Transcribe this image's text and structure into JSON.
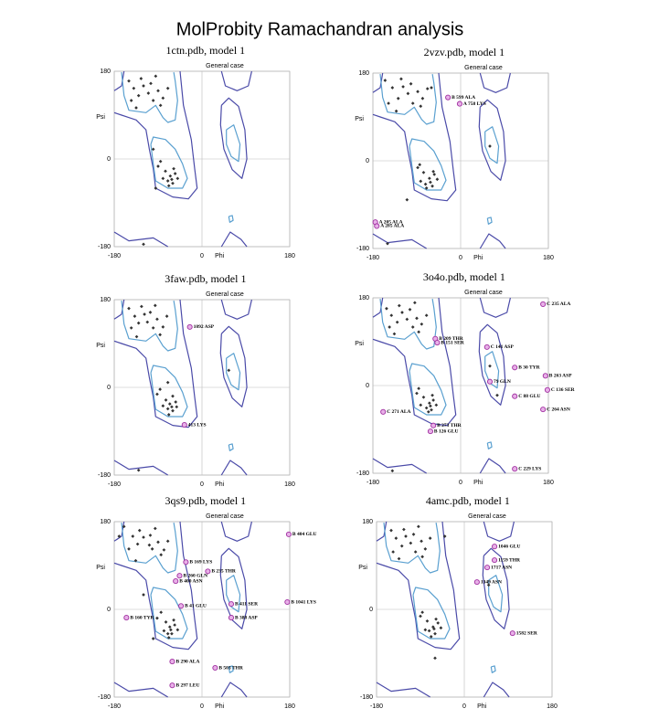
{
  "title": "MolProbity Ramachandran analysis",
  "chart_data": [
    {
      "type": "scatter",
      "title": "1ctn.pdb, model 1",
      "subtitle": "General case",
      "x_label": "Phi",
      "y_label": "Psi",
      "xlim": [
        -180,
        180
      ],
      "ylim": [
        -180,
        180
      ],
      "xticks": [
        -180,
        0,
        180
      ],
      "yticks": [
        -180,
        0,
        180
      ],
      "grid": true,
      "series": [
        {
          "color": "#333333",
          "x": [
            -150,
            -140,
            -130,
            -120,
            -110,
            -100,
            -90,
            -80,
            -70,
            -145,
            -125,
            -105,
            -85,
            -135,
            -95,
            -80,
            -70,
            -65,
            -60,
            -55,
            -75,
            -90,
            -62,
            -58,
            -68,
            -50,
            -85,
            -120,
            -95,
            -100
          ],
          "y": [
            160,
            145,
            130,
            150,
            135,
            120,
            140,
            125,
            145,
            120,
            165,
            155,
            110,
            105,
            170,
            -40,
            -45,
            -35,
            -50,
            -30,
            -25,
            -15,
            -42,
            -20,
            -55,
            -40,
            -5,
            -175,
            -60,
            20
          ]
        }
      ],
      "annotations": []
    },
    {
      "type": "scatter",
      "title": "2vzv.pdb, model 1",
      "subtitle": "General case",
      "x_label": "Phi",
      "y_label": "Psi",
      "xlim": [
        -180,
        180
      ],
      "ylim": [
        -180,
        180
      ],
      "xticks": [
        -180,
        0,
        180
      ],
      "yticks": [
        -180,
        0,
        180
      ],
      "grid": true,
      "series": [
        {
          "color": "#333333",
          "x": [
            -155,
            -140,
            -128,
            -118,
            -108,
            -98,
            -88,
            -78,
            -68,
            -148,
            -122,
            -102,
            -82,
            -132,
            -60,
            -82,
            -72,
            -64,
            -58,
            -54,
            -76,
            -88,
            -62,
            -56,
            -70,
            -48,
            -84,
            -150,
            60,
            -110
          ],
          "y": [
            165,
            150,
            128,
            152,
            138,
            118,
            142,
            128,
            148,
            118,
            168,
            158,
            112,
            102,
            150,
            -42,
            -48,
            -36,
            -52,
            -28,
            -24,
            -14,
            -44,
            -22,
            -56,
            -38,
            -8,
            -170,
            30,
            -80
          ]
        }
      ],
      "annotations": [
        {
          "label": "B 599 ALA",
          "x": -26,
          "y": 130
        },
        {
          "label": "A 758 LYS",
          "x": -2,
          "y": 117
        },
        {
          "label": "A 205 ALA",
          "x": -175,
          "y": -126
        },
        {
          "label": "A 285 ALA",
          "x": -172,
          "y": -134
        }
      ]
    },
    {
      "type": "scatter",
      "title": "3faw.pdb, model 1",
      "subtitle": "General case",
      "x_label": "Phi",
      "y_label": "Psi",
      "xlim": [
        -180,
        180
      ],
      "ylim": [
        -180,
        180
      ],
      "xticks": [
        -180,
        0,
        180
      ],
      "yticks": [
        -180,
        0,
        180
      ],
      "grid": true,
      "series": [
        {
          "color": "#333333",
          "x": [
            -150,
            -138,
            -130,
            -118,
            -112,
            -100,
            -92,
            -80,
            -72,
            -145,
            -124,
            -106,
            -86,
            -134,
            -96,
            -80,
            -70,
            -66,
            -60,
            -54,
            -74,
            -92,
            -62,
            -60,
            -68,
            -52,
            -86,
            -130,
            55,
            -70
          ],
          "y": [
            162,
            146,
            132,
            150,
            134,
            122,
            140,
            124,
            146,
            122,
            166,
            154,
            108,
            104,
            168,
            -38,
            -44,
            -34,
            -48,
            -30,
            -26,
            -14,
            -40,
            -18,
            -56,
            -40,
            -4,
            -170,
            35,
            10
          ]
        }
      ],
      "annotations": [
        {
          "label": "1092 ASP",
          "x": -25,
          "y": 124
        },
        {
          "label": "413 LYS",
          "x": -36,
          "y": -77
        }
      ]
    },
    {
      "type": "scatter",
      "title": "3o4o.pdb, model 1",
      "subtitle": "General case",
      "x_label": "Phi",
      "y_label": "Psi",
      "xlim": [
        -180,
        180
      ],
      "ylim": [
        -180,
        180
      ],
      "xticks": [
        -180,
        0,
        180
      ],
      "yticks": [
        -180,
        0,
        180
      ],
      "grid": true,
      "series": [
        {
          "color": "#333333",
          "x": [
            -152,
            -142,
            -130,
            -120,
            -110,
            -98,
            -90,
            -80,
            -70,
            -146,
            -126,
            -104,
            -86,
            -136,
            -94,
            -82,
            -70,
            -64,
            -60,
            -56,
            -76,
            -90,
            -62,
            -58,
            -66,
            -50,
            -86,
            -140,
            60,
            75
          ],
          "y": [
            158,
            144,
            130,
            150,
            136,
            120,
            138,
            126,
            144,
            120,
            164,
            156,
            110,
            106,
            170,
            -40,
            -46,
            -36,
            -50,
            -30,
            -24,
            -16,
            -42,
            -20,
            -54,
            -40,
            -6,
            -175,
            40,
            -20
          ]
        }
      ],
      "annotations": [
        {
          "label": "C 235 ALA",
          "x": 169,
          "y": 167
        },
        {
          "label": "B 209 THR",
          "x": -52,
          "y": 96
        },
        {
          "label": "B 151 SER",
          "x": -48,
          "y": 88
        },
        {
          "label": "C 141 ASP",
          "x": 54,
          "y": 79
        },
        {
          "label": "B 30 TYR",
          "x": 111,
          "y": 37
        },
        {
          "label": "B 263 ASP",
          "x": 174,
          "y": 20
        },
        {
          "label": "79 GLN",
          "x": 60,
          "y": 8
        },
        {
          "label": "C 136 SER",
          "x": 178,
          "y": -9
        },
        {
          "label": "C 88 GLU",
          "x": 111,
          "y": -22
        },
        {
          "label": "C 264 ASN",
          "x": 169,
          "y": -49
        },
        {
          "label": "C 271 ALA",
          "x": -159,
          "y": -54
        },
        {
          "label": "B 273 THR",
          "x": -56,
          "y": -82
        },
        {
          "label": "B 126 GLU",
          "x": -62,
          "y": -94
        },
        {
          "label": "C 229 LYS",
          "x": 111,
          "y": -171
        }
      ]
    },
    {
      "type": "scatter",
      "title": "3qs9.pdb, model 1",
      "subtitle": "General case",
      "x_label": "Phi",
      "y_label": "Psi",
      "xlim": [
        -180,
        180
      ],
      "ylim": [
        -180,
        180
      ],
      "xticks": [
        -180,
        0,
        180
      ],
      "yticks": [
        -180,
        0,
        180
      ],
      "grid": true,
      "series": [
        {
          "color": "#333333",
          "x": [
            -160,
            -142,
            -132,
            -120,
            -108,
            -102,
            -90,
            -78,
            -70,
            -150,
            -128,
            -106,
            -84,
            -136,
            -96,
            -78,
            -70,
            -66,
            -62,
            -56,
            -74,
            -92,
            -64,
            -58,
            -68,
            -50,
            -84,
            -170,
            -100,
            -120
          ],
          "y": [
            170,
            150,
            134,
            148,
            132,
            124,
            138,
            122,
            140,
            124,
            162,
            152,
            112,
            100,
            166,
            -44,
            -50,
            -36,
            -50,
            -32,
            -26,
            -18,
            -42,
            -22,
            -58,
            -42,
            -6,
            150,
            -60,
            30
          ]
        }
      ],
      "annotations": [
        {
          "label": "B 404 GLU",
          "x": 178,
          "y": 154
        },
        {
          "label": "B 169 LYS",
          "x": -33,
          "y": 97
        },
        {
          "label": "B 235 THR",
          "x": 12,
          "y": 78
        },
        {
          "label": "B 260 GLN",
          "x": -46,
          "y": 69
        },
        {
          "label": "B 400 ASN",
          "x": -54,
          "y": 58
        },
        {
          "label": "B 41 GLU",
          "x": -43,
          "y": 7
        },
        {
          "label": "B 411 SER",
          "x": 60,
          "y": 11
        },
        {
          "label": "B 1041 LYS",
          "x": 175,
          "y": 15
        },
        {
          "label": "B 160 TYR",
          "x": -155,
          "y": -17
        },
        {
          "label": "B 388 ASP",
          "x": 60,
          "y": -17
        },
        {
          "label": "B 290 ALA",
          "x": -61,
          "y": -107
        },
        {
          "label": "B 503 THR",
          "x": 27,
          "y": -120
        },
        {
          "label": "B 297 LEU",
          "x": -61,
          "y": -156
        }
      ]
    },
    {
      "type": "scatter",
      "title": "4amc.pdb, model 1",
      "subtitle": "General case",
      "x_label": "Phi",
      "y_label": "Psi",
      "xlim": [
        -180,
        180
      ],
      "ylim": [
        -180,
        180
      ],
      "xticks": [
        -180,
        0,
        180
      ],
      "yticks": [
        -180,
        0,
        180
      ],
      "grid": true,
      "series": [
        {
          "color": "#333333",
          "x": [
            -150,
            -140,
            -128,
            -120,
            -110,
            -100,
            -88,
            -80,
            -70,
            -146,
            -124,
            -104,
            -86,
            -134,
            -94,
            -80,
            -72,
            -64,
            -60,
            -54,
            -76,
            -90,
            -62,
            -58,
            -68,
            -48,
            -86,
            -60,
            50,
            -40
          ],
          "y": [
            162,
            146,
            130,
            150,
            136,
            118,
            140,
            124,
            146,
            118,
            164,
            154,
            108,
            104,
            170,
            -42,
            -44,
            -36,
            -50,
            -28,
            -24,
            -14,
            -40,
            -20,
            -56,
            -38,
            -6,
            -100,
            50,
            150
          ]
        }
      ],
      "annotations": [
        {
          "label": "1046 GLU",
          "x": 62,
          "y": 129
        },
        {
          "label": "1159 THR",
          "x": 62,
          "y": 101
        },
        {
          "label": "1717 ASN",
          "x": 47,
          "y": 86
        },
        {
          "label": "1349 ASN",
          "x": 26,
          "y": 56
        },
        {
          "label": "1582 SER",
          "x": 99,
          "y": -49
        }
      ]
    }
  ]
}
